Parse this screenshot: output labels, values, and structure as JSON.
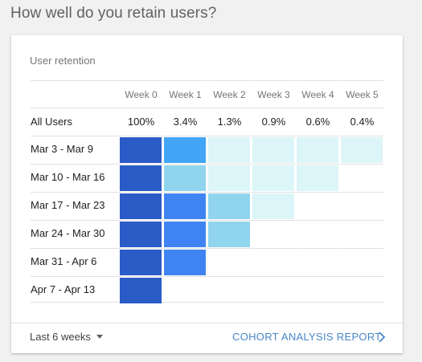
{
  "page_title": "How well do you retain users?",
  "card": {
    "title": "User retention",
    "weeks": [
      "Week 0",
      "Week 1",
      "Week 2",
      "Week 3",
      "Week 4",
      "Week 5"
    ],
    "all_users": {
      "label": "All Users",
      "values": [
        "100%",
        "3.4%",
        "1.3%",
        "0.9%",
        "0.6%",
        "0.4%"
      ]
    },
    "cohorts": [
      {
        "label": "Mar 3 - Mar 9",
        "level_colors": [
          "#2b5bc6",
          "#42a5f5",
          "#dcf5f8",
          "#dcf5f8",
          "#dcf5f8",
          "#dcf5f8"
        ]
      },
      {
        "label": "Mar 10 - Mar 16",
        "level_colors": [
          "#2b5bc6",
          "#90d4ee",
          "#dcf5f8",
          "#dcf5f8",
          "#dcf5f8"
        ]
      },
      {
        "label": "Mar 17 - Mar 23",
        "level_colors": [
          "#2b5bc6",
          "#3f84f2",
          "#90d4ee",
          "#dcf5f8"
        ]
      },
      {
        "label": "Mar 24 - Mar 30",
        "level_colors": [
          "#2b5bc6",
          "#3f84f2",
          "#90d4ee"
        ]
      },
      {
        "label": "Mar 31 - Apr 6",
        "level_colors": [
          "#2b5bc6",
          "#3f84f2"
        ]
      },
      {
        "label": "Apr 7 - Apr 13",
        "level_colors": [
          "#2b5bc6"
        ]
      }
    ]
  },
  "footer": {
    "range_label": "Last 6 weeks",
    "report_link": "COHORT ANALYSIS REPORT"
  },
  "colors": {
    "link": "#4a86c8",
    "heat_dark": "#2b5bc6",
    "heat_mid": "#3f84f2",
    "heat_bright": "#42a5f5",
    "heat_light": "#90d4ee",
    "heat_pale": "#dcf5f8"
  },
  "icons": [
    "caret-down-icon",
    "chevron-right-icon"
  ]
}
